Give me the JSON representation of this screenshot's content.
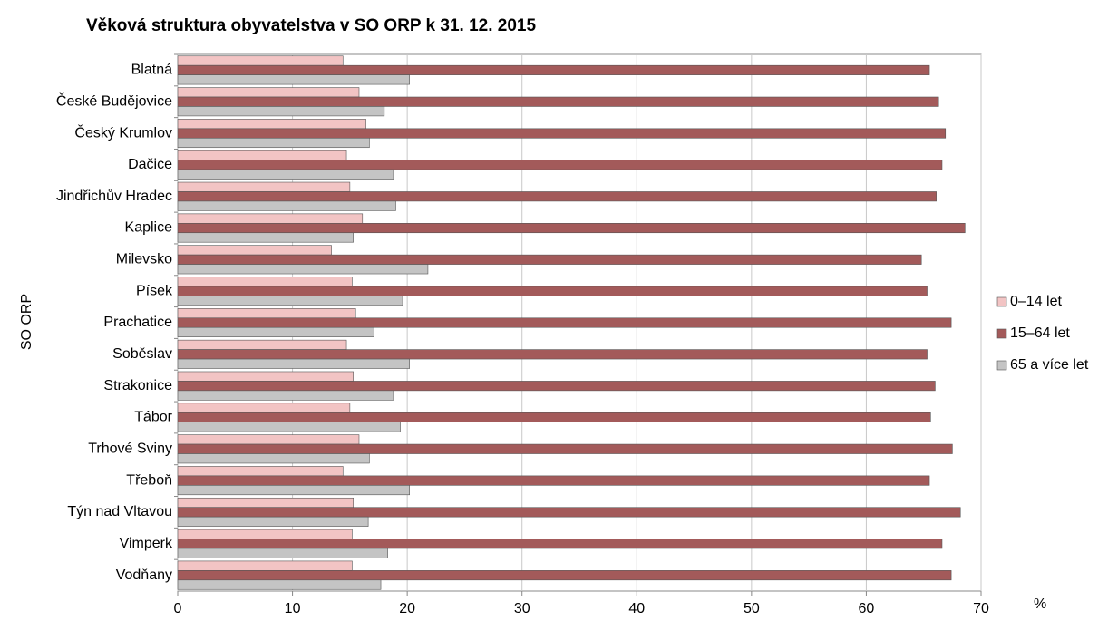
{
  "chart_data": {
    "type": "bar",
    "orientation": "horizontal",
    "title": "Věková struktura  obyvatelstva  v  SO ORP k 31. 12. 2015",
    "ylabel": "SO ORP",
    "xlabel": "%",
    "categories": [
      "Blatná",
      "České Budějovice",
      "Český Krumlov",
      "Dačice",
      "Jindřichův Hradec",
      "Kaplice",
      "Milevsko",
      "Písek",
      "Prachatice",
      "Soběslav",
      "Strakonice",
      "Tábor",
      "Trhové Sviny",
      "Třeboň",
      "Týn nad Vltavou",
      "Vimperk",
      "Vodňany"
    ],
    "series": [
      {
        "name": "0–14 let",
        "color": "#f2c4c4",
        "values": [
          14.4,
          15.8,
          16.4,
          14.7,
          15.0,
          16.1,
          13.4,
          15.2,
          15.5,
          14.7,
          15.3,
          15.0,
          15.8,
          14.4,
          15.3,
          15.2,
          15.2
        ]
      },
      {
        "name": "15–64 let",
        "color": "#a35a5a",
        "values": [
          65.5,
          66.3,
          66.9,
          66.6,
          66.1,
          68.6,
          64.8,
          65.3,
          67.4,
          65.3,
          66.0,
          65.6,
          67.5,
          65.5,
          68.2,
          66.6,
          67.4
        ]
      },
      {
        "name": "65 a více let",
        "color": "#c4c4c4",
        "values": [
          20.2,
          18.0,
          16.7,
          18.8,
          19.0,
          15.3,
          21.8,
          19.6,
          17.1,
          20.2,
          18.8,
          19.4,
          16.7,
          20.2,
          16.6,
          18.3,
          17.7
        ]
      }
    ],
    "xlim": [
      0,
      70
    ],
    "xticks": [
      0,
      10,
      20,
      30,
      40,
      50,
      60,
      70
    ],
    "grid": true,
    "legend": "right"
  }
}
